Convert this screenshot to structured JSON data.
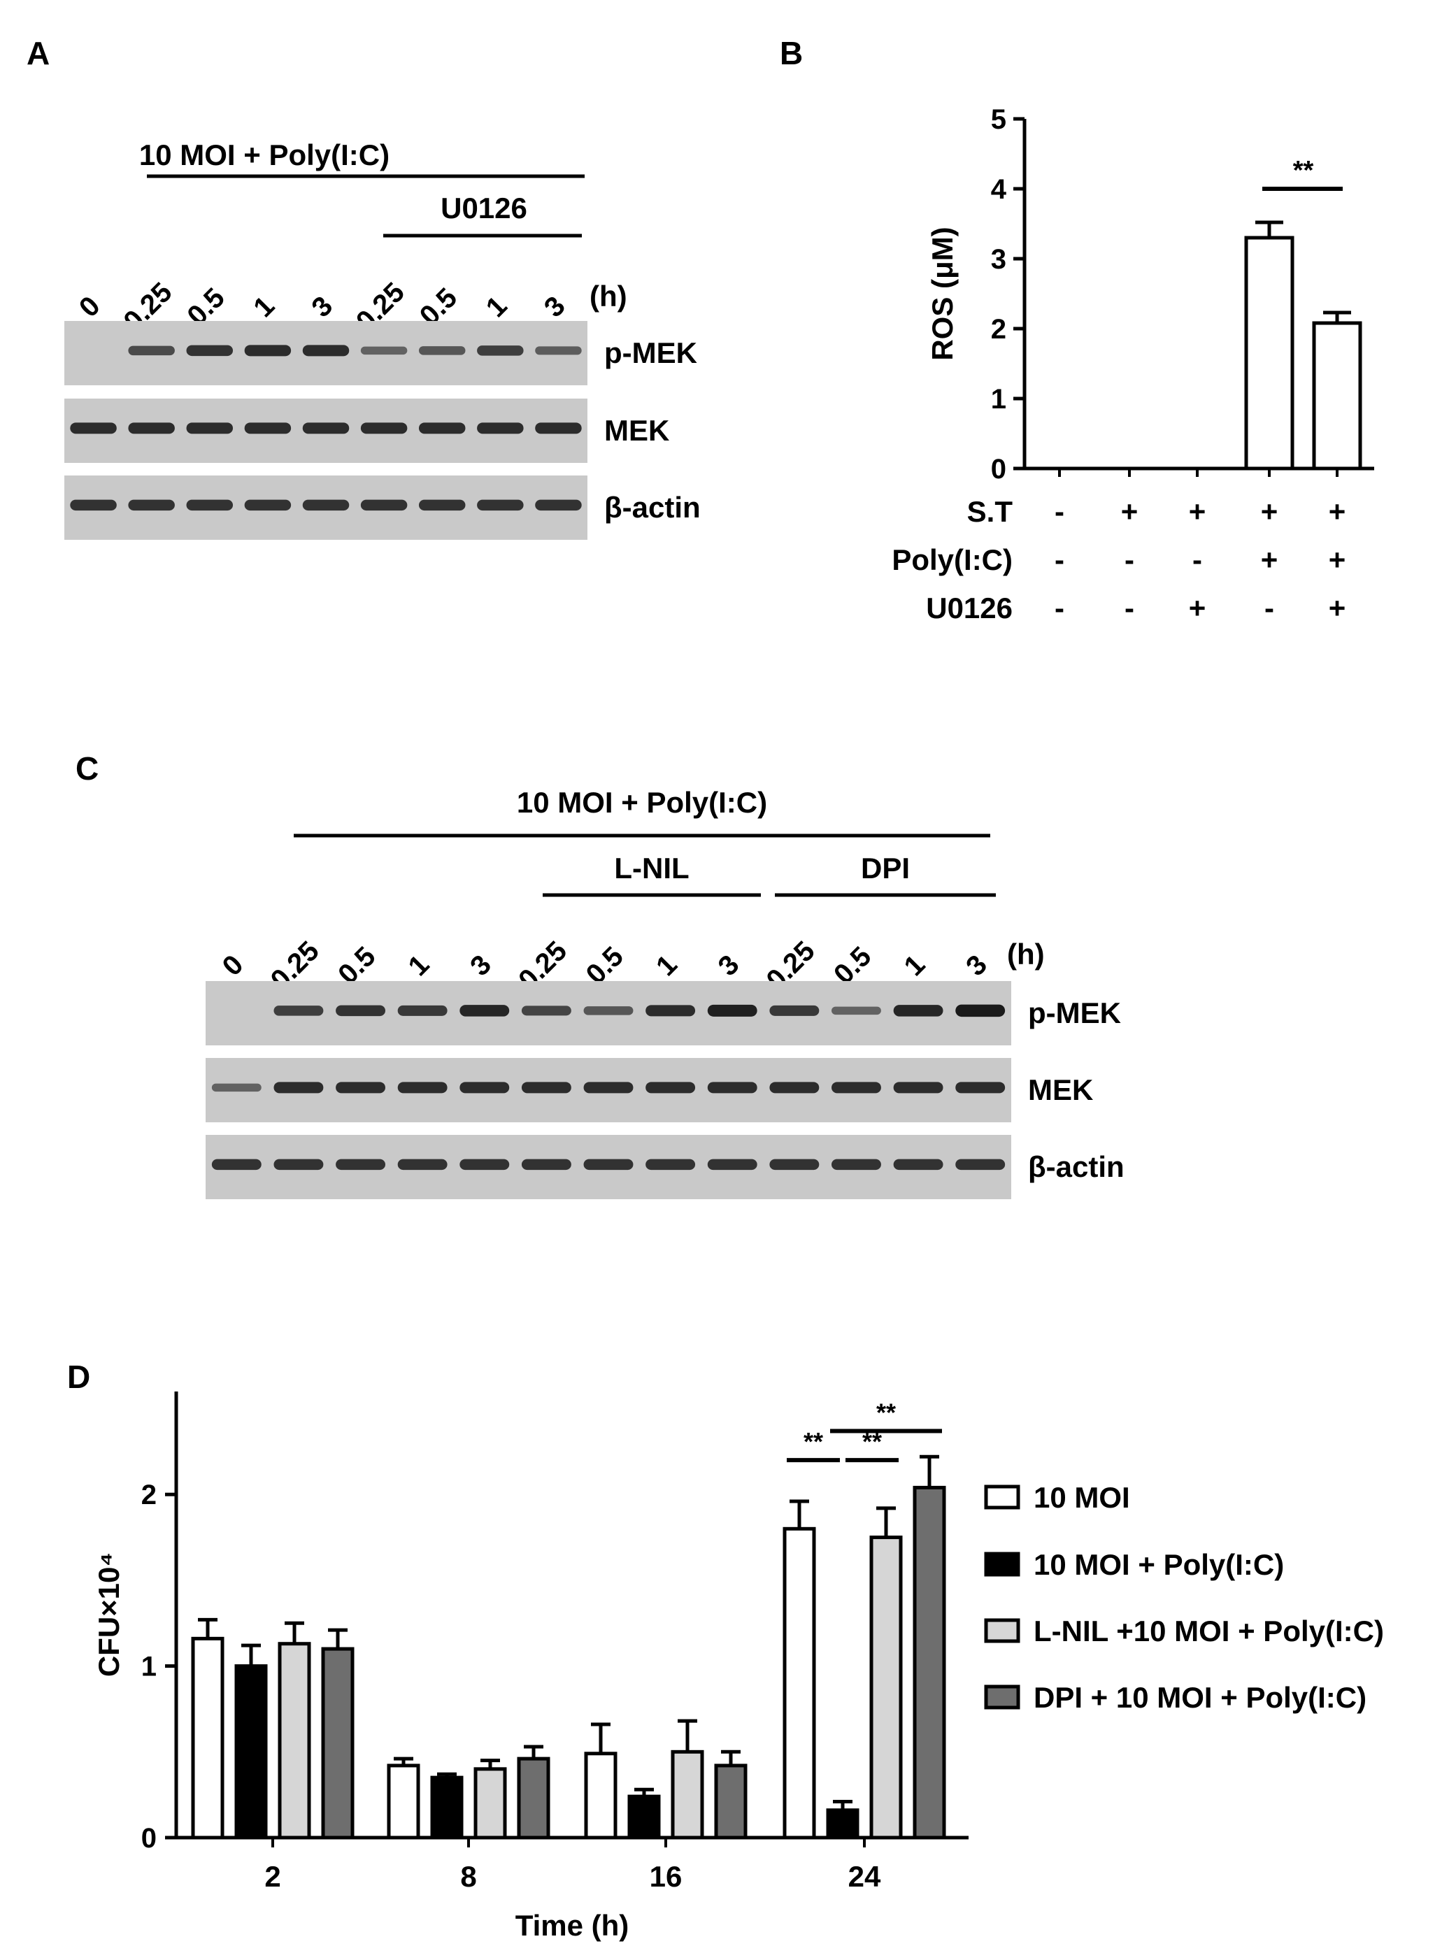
{
  "panels": {
    "A": {
      "letter": "A",
      "group_label": "10 MOI + Poly(I:C)",
      "inhibitor_label": "U0126",
      "lanes": [
        "0",
        "0.25",
        "0.5",
        "1",
        "3",
        "0.25",
        "0.5",
        "1",
        "3"
      ],
      "time_unit": "(h)",
      "blots": [
        "p-MEK",
        "MEK",
        "β-actin"
      ],
      "pmek_intensity": [
        0.0,
        0.55,
        0.75,
        0.8,
        0.8,
        0.35,
        0.45,
        0.65,
        0.4
      ]
    },
    "C": {
      "letter": "C",
      "group_label": "10 MOI + Poly(I:C)",
      "inhibitor_labels": [
        "L-NIL",
        "DPI"
      ],
      "lanes": [
        "0",
        "0.25",
        "0.5",
        "1",
        "3",
        "0.25",
        "0.5",
        "1",
        "3",
        "0.25",
        "0.5",
        "1",
        "3"
      ],
      "time_unit": "(h)",
      "blots": [
        "p-MEK",
        "MEK",
        "β-actin"
      ],
      "pmek_intensity": [
        0.05,
        0.65,
        0.75,
        0.7,
        0.85,
        0.6,
        0.45,
        0.8,
        0.9,
        0.7,
        0.35,
        0.85,
        0.95
      ]
    }
  },
  "chart_data": [
    {
      "panel": "B",
      "type": "bar",
      "ylabel": "ROS (μM)",
      "ylim": [
        0,
        5
      ],
      "yticks": [
        0,
        1,
        2,
        3,
        4,
        5
      ],
      "values": [
        0,
        0,
        0,
        3.3,
        2.08
      ],
      "errors": [
        0,
        0,
        0,
        0.22,
        0.15
      ],
      "conditions": [
        {
          "label": "S.T",
          "signs": [
            "-",
            "+",
            "+",
            "+",
            "+"
          ]
        },
        {
          "label": "Poly(I:C)",
          "signs": [
            "-",
            "-",
            "-",
            "+",
            "+"
          ]
        },
        {
          "label": "U0126",
          "signs": [
            "-",
            "-",
            "+",
            "-",
            "+"
          ]
        }
      ],
      "significance": [
        {
          "between": [
            3,
            4
          ],
          "label": "**"
        }
      ]
    },
    {
      "panel": "D",
      "type": "bar",
      "xlabel": "Time  (h)",
      "ylabel": "CFU×10⁴",
      "ylim": [
        0,
        2.6
      ],
      "yticks": [
        0,
        1,
        2
      ],
      "categories": [
        "2",
        "8",
        "16",
        "24"
      ],
      "series": [
        {
          "name": "10 MOI",
          "color": "#ffffff",
          "values": [
            1.16,
            0.42,
            0.49,
            1.8
          ],
          "errors": [
            0.11,
            0.04,
            0.17,
            0.16
          ]
        },
        {
          "name": "10 MOI + Poly(I:C)",
          "color": "#000000",
          "values": [
            1.0,
            0.35,
            0.24,
            0.16
          ],
          "errors": [
            0.12,
            0.02,
            0.04,
            0.05
          ]
        },
        {
          "name": "L-NIL +10 MOI + Poly(I:C)",
          "color": "#d6d6d6",
          "values": [
            1.13,
            0.4,
            0.5,
            1.75
          ],
          "errors": [
            0.12,
            0.05,
            0.18,
            0.17
          ]
        },
        {
          "name": "DPI + 10 MOI + Poly(I:C)",
          "color": "#6e6e6e",
          "values": [
            1.1,
            0.46,
            0.42,
            2.04
          ],
          "errors": [
            0.11,
            0.07,
            0.08,
            0.18
          ]
        }
      ],
      "significance": [
        {
          "category": "24",
          "between": [
            0,
            1
          ],
          "label": "**"
        },
        {
          "category": "24",
          "between": [
            1,
            2
          ],
          "label": "**"
        },
        {
          "category": "24",
          "between": [
            1,
            3
          ],
          "label": "**"
        }
      ]
    }
  ]
}
